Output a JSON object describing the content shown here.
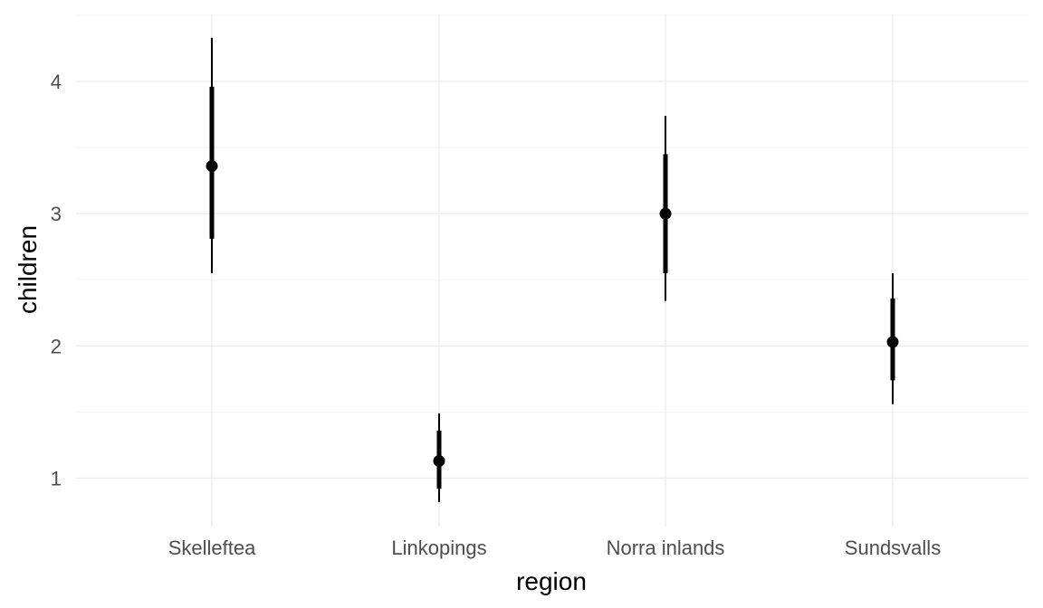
{
  "chart_data": {
    "type": "pointrange",
    "xlabel": "region",
    "ylabel": "children",
    "categories": [
      "Skelleftea",
      "Linkopings",
      "Norra inlands",
      "Sundsvalls"
    ],
    "points": [
      {
        "category": "Skelleftea",
        "value": 3.36,
        "inner": [
          2.81,
          3.96
        ],
        "outer": [
          2.55,
          4.33
        ]
      },
      {
        "category": "Linkopings",
        "value": 1.13,
        "inner": [
          0.92,
          1.36
        ],
        "outer": [
          0.82,
          1.49
        ]
      },
      {
        "category": "Norra inlands",
        "value": 3.0,
        "inner": [
          2.55,
          3.45
        ],
        "outer": [
          2.34,
          3.74
        ]
      },
      {
        "category": "Sundsvalls",
        "value": 2.03,
        "inner": [
          1.74,
          2.36
        ],
        "outer": [
          1.56,
          2.55
        ]
      }
    ],
    "yticks": [
      1,
      2,
      3,
      4
    ],
    "ylim": [
      0.65,
      4.5
    ],
    "grid": true,
    "colors": {
      "marks": "#000000",
      "grid_major": "#ebebeb",
      "grid_minor": "#f5f5f5",
      "tick_text": "#4d4d4d"
    }
  }
}
